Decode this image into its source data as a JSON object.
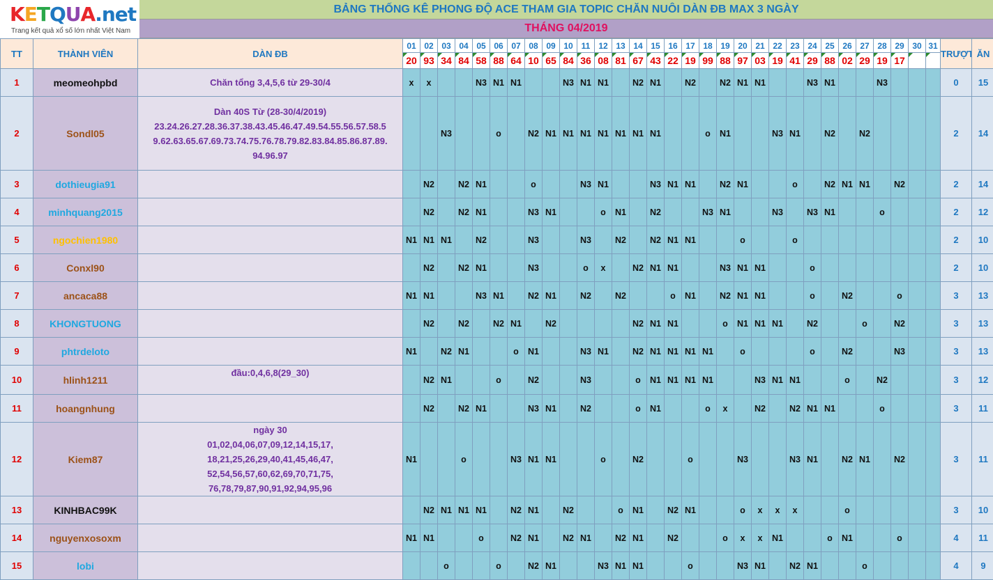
{
  "logo": {
    "letters": [
      "K",
      "E",
      "T",
      "Q",
      "U",
      "A"
    ],
    "letter_colors": [
      "#e8262a",
      "#f5a623",
      "#2aa84a",
      "#1f78c1",
      "#8e44ad",
      "#e8262a"
    ],
    "suffix": ".net",
    "tagline": "Trang kết quả xổ số lớn nhất Việt Nam"
  },
  "title": "BẢNG THỐNG KÊ PHONG ĐỘ ACE THAM GIA TOPIC CHĂN NUÔI DÀN ĐB MAX 3 NGÀY",
  "month": "THÁNG 04/2019",
  "headers": {
    "tt": "TT",
    "member": "THÀNH VIÊN",
    "dan": "DÀN ĐB",
    "miss": "TRƯỢT",
    "hit": "ĂN"
  },
  "days": [
    "01",
    "02",
    "03",
    "04",
    "05",
    "06",
    "07",
    "08",
    "09",
    "10",
    "11",
    "12",
    "13",
    "14",
    "15",
    "16",
    "17",
    "18",
    "19",
    "20",
    "21",
    "22",
    "23",
    "24",
    "25",
    "26",
    "27",
    "28",
    "29",
    "30",
    "31"
  ],
  "results": [
    "20",
    "93",
    "34",
    "84",
    "58",
    "88",
    "64",
    "10",
    "65",
    "84",
    "36",
    "08",
    "81",
    "67",
    "43",
    "22",
    "19",
    "99",
    "88",
    "97",
    "03",
    "19",
    "41",
    "29",
    "88",
    "02",
    "29",
    "19",
    "17",
    "",
    ""
  ],
  "name_colors": {
    "blk": "#111111",
    "brn": "#9c5218",
    "cyn": "#1fa8e0",
    "yel": "#ffc000"
  },
  "rows": [
    {
      "tt": "1",
      "name": "meomeohpbd",
      "color": "blk",
      "dan": [
        "Chăn tổng 3,4,5,6 từ 29-30/4"
      ],
      "cells": [
        "x",
        "x",
        "",
        "",
        "N3",
        "N1",
        "N1",
        "",
        "",
        "N3",
        "N1",
        "N1",
        "",
        "N2",
        "N1",
        "",
        "N2",
        "",
        "N2",
        "N1",
        "N1",
        "",
        "",
        "N3",
        "N1",
        "",
        "",
        "N3",
        "",
        "",
        ""
      ],
      "miss": "0",
      "hit": "15"
    },
    {
      "tt": "2",
      "name": "Sondl05",
      "color": "brn",
      "dan": [
        "Dàn 40S Từ (28-30/4/2019)",
        "23.24.26.27.28.36.37.38.43.45.46.47.49.54.55.56.57.58.5",
        "9.62.63.65.67.69.73.74.75.76.78.79.82.83.84.85.86.87.89.",
        "94.96.97"
      ],
      "cells": [
        "",
        "",
        "N3",
        "",
        "",
        "o",
        "",
        "N2",
        "N1",
        "N1",
        "N1",
        "N1",
        "N1",
        "N1",
        "N1",
        "",
        "",
        "o",
        "N1",
        "",
        "",
        "N3",
        "N1",
        "",
        "N2",
        "",
        "N2",
        "",
        "",
        "",
        ""
      ],
      "miss": "2",
      "hit": "14"
    },
    {
      "tt": "3",
      "name": "dothieugia91",
      "color": "cyn",
      "dan": [],
      "cells": [
        "",
        "N2",
        "",
        "N2",
        "N1",
        "",
        "",
        "o",
        "",
        "",
        "N3",
        "N1",
        "",
        "",
        "N3",
        "N1",
        "N1",
        "",
        "N2",
        "N1",
        "",
        "",
        "o",
        "",
        "N2",
        "N1",
        "N1",
        "",
        "N2",
        "",
        ""
      ],
      "miss": "2",
      "hit": "14"
    },
    {
      "tt": "4",
      "name": "minhquang2015",
      "color": "cyn",
      "dan": [],
      "cells": [
        "",
        "N2",
        "",
        "N2",
        "N1",
        "",
        "",
        "N3",
        "N1",
        "",
        "",
        "o",
        "N1",
        "",
        "N2",
        "",
        "",
        "N3",
        "N1",
        "",
        "",
        "N3",
        "",
        "N3",
        "N1",
        "",
        "",
        "o",
        "",
        "",
        ""
      ],
      "miss": "2",
      "hit": "12"
    },
    {
      "tt": "5",
      "name": "ngochien1980",
      "color": "yel",
      "dan": [],
      "cells": [
        "N1",
        "N1",
        "N1",
        "",
        "N2",
        "",
        "",
        "N3",
        "",
        "",
        "N3",
        "",
        "N2",
        "",
        "N2",
        "N1",
        "N1",
        "",
        "",
        "o",
        "",
        "",
        "o",
        "",
        "",
        "",
        "",
        "",
        "",
        "",
        ""
      ],
      "miss": "2",
      "hit": "10"
    },
    {
      "tt": "6",
      "name": "Conxl90",
      "color": "brn",
      "dan": [],
      "cells": [
        "",
        "N2",
        "",
        "N2",
        "N1",
        "",
        "",
        "N3",
        "",
        "",
        "o",
        "x",
        "",
        "N2",
        "N1",
        "N1",
        "",
        "",
        "N3",
        "N1",
        "N1",
        "",
        "",
        "o",
        "",
        "",
        "",
        "",
        "",
        "",
        ""
      ],
      "miss": "2",
      "hit": "10"
    },
    {
      "tt": "7",
      "name": "ancaca88",
      "color": "brn",
      "dan": [],
      "cells": [
        "N1",
        "N1",
        "",
        "",
        "N3",
        "N1",
        "",
        "N2",
        "N1",
        "",
        "N2",
        "",
        "N2",
        "",
        "",
        "o",
        "N1",
        "",
        "N2",
        "N1",
        "N1",
        "",
        "",
        "o",
        "",
        "N2",
        "",
        "",
        "o",
        "",
        ""
      ],
      "miss": "3",
      "hit": "13"
    },
    {
      "tt": "8",
      "name": "KHONGTUONG",
      "color": "cyn",
      "dan": [],
      "cells": [
        "",
        "N2",
        "",
        "N2",
        "",
        "N2",
        "N1",
        "",
        "N2",
        "",
        "",
        "",
        "",
        "N2",
        "N1",
        "N1",
        "",
        "",
        "o",
        "N1",
        "N1",
        "N1",
        "",
        "N2",
        "",
        "",
        "o",
        "",
        "N2",
        "",
        ""
      ],
      "miss": "3",
      "hit": "13"
    },
    {
      "tt": "9",
      "name": "phtrdeloto",
      "color": "cyn",
      "dan": [],
      "cells": [
        "N1",
        "",
        "N2",
        "N1",
        "",
        "",
        "o",
        "N1",
        "",
        "",
        "N3",
        "N1",
        "",
        "N2",
        "N1",
        "N1",
        "N1",
        "N1",
        "",
        "o",
        "",
        "",
        "",
        "o",
        "",
        "N2",
        "",
        "",
        "N3",
        "",
        ""
      ],
      "miss": "3",
      "hit": "13"
    },
    {
      "tt": "10",
      "name": "hlinh1211",
      "color": "brn",
      "dan": [
        "đầu:0,4,6,8(29_30)"
      ],
      "cells": [
        "",
        "N2",
        "N1",
        "",
        "",
        "o",
        "",
        "N2",
        "",
        "",
        "N3",
        "",
        "",
        "o",
        "N1",
        "N1",
        "N1",
        "N1",
        "",
        "",
        "N3",
        "N1",
        "N1",
        "",
        "",
        "o",
        "",
        "N2",
        "",
        "",
        ""
      ],
      "miss": "3",
      "hit": "12"
    },
    {
      "tt": "11",
      "name": "hoangnhung",
      "color": "brn",
      "dan": [],
      "cells": [
        "",
        "N2",
        "",
        "N2",
        "N1",
        "",
        "",
        "N3",
        "N1",
        "",
        "N2",
        "",
        "",
        "o",
        "N1",
        "",
        "",
        "o",
        "x",
        "",
        "N2",
        "",
        "N2",
        "N1",
        "N1",
        "",
        "",
        "o",
        "",
        "",
        ""
      ],
      "miss": "3",
      "hit": "11"
    },
    {
      "tt": "12",
      "name": "Kiem87",
      "color": "brn",
      "dan": [
        "ngày 30",
        "01,02,04,06,07,09,12,14,15,17,",
        "18,21,25,26,29,40,41,45,46,47,",
        "52,54,56,57,60,62,69,70,71,75,",
        "76,78,79,87,90,91,92,94,95,96"
      ],
      "cells": [
        "N1",
        "",
        "",
        "o",
        "",
        "",
        "N3",
        "N1",
        "N1",
        "",
        "",
        "o",
        "",
        "N2",
        "",
        "",
        "o",
        "",
        "",
        "N3",
        "",
        "",
        "N3",
        "N1",
        "",
        "N2",
        "N1",
        "",
        "N2",
        "",
        ""
      ],
      "miss": "3",
      "hit": "11"
    },
    {
      "tt": "13",
      "name": "KINHBAC99K",
      "color": "blk",
      "dan": [],
      "cells": [
        "",
        "N2",
        "N1",
        "N1",
        "N1",
        "",
        "N2",
        "N1",
        "",
        "N2",
        "",
        "",
        "o",
        "N1",
        "",
        "N2",
        "N1",
        "",
        "",
        "o",
        "x",
        "x",
        "x",
        "",
        "",
        "o",
        "",
        "",
        "",
        "",
        ""
      ],
      "miss": "3",
      "hit": "10"
    },
    {
      "tt": "14",
      "name": "nguyenxosoxm",
      "color": "brn",
      "dan": [],
      "cells": [
        "N1",
        "N1",
        "",
        "",
        "o",
        "",
        "N2",
        "N1",
        "",
        "N2",
        "N1",
        "",
        "N2",
        "N1",
        "",
        "N2",
        "",
        "",
        "o",
        "x",
        "x",
        "N1",
        "",
        "",
        "o",
        "N1",
        "",
        "",
        "o",
        "",
        ""
      ],
      "miss": "4",
      "hit": "11"
    },
    {
      "tt": "15",
      "name": "lobi",
      "color": "cyn",
      "dan": [],
      "cells": [
        "",
        "",
        "o",
        "",
        "",
        "o",
        "",
        "N2",
        "N1",
        "",
        "",
        "N3",
        "N1",
        "N1",
        "",
        "",
        "o",
        "",
        "",
        "N3",
        "N1",
        "",
        "N2",
        "N1",
        "",
        "",
        "o",
        "",
        "",
        "",
        ""
      ],
      "miss": "4",
      "hit": "9"
    }
  ]
}
